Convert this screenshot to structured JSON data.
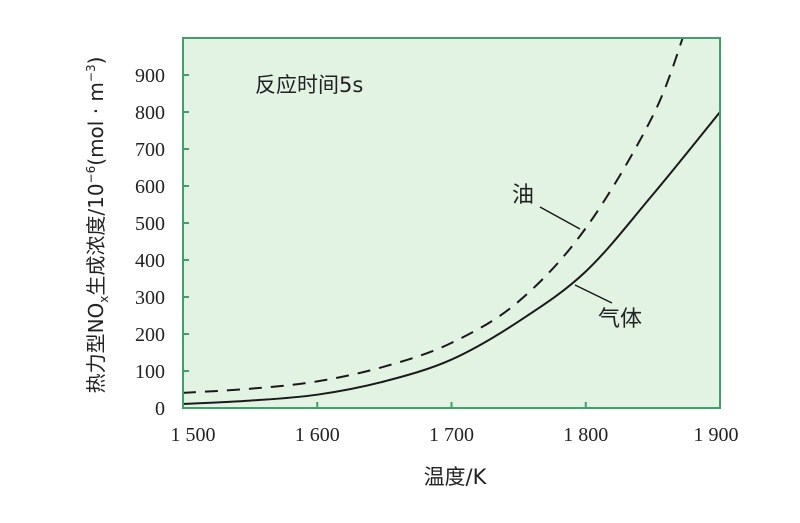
{
  "chart_data": {
    "type": "line",
    "title": "",
    "annotation": "反应时间5s",
    "xlabel": "温度/K",
    "ylabel": "热力型NOx生成浓度/10⁻⁶(mol · m⁻³)",
    "ylabel_parts": {
      "pre": "热力型NO",
      "sub": "x",
      "mid": "生成浓度/10",
      "sup1": "−6",
      "unit": "(mol · m",
      "sup2": "−3",
      "close": ")"
    },
    "xlim": [
      1500,
      1900
    ],
    "ylim": [
      0,
      1000
    ],
    "x_ticks": [
      1500,
      1600,
      1700,
      1800,
      1900
    ],
    "x_tick_labels": [
      "1 500",
      "1 600",
      "1 700",
      "1 800",
      "1 900"
    ],
    "y_ticks": [
      0,
      100,
      200,
      300,
      400,
      500,
      600,
      700,
      800,
      900
    ],
    "y_tick_labels": [
      "0",
      "100",
      "200",
      "300",
      "400",
      "500",
      "600",
      "700",
      "800",
      "900"
    ],
    "grid": false,
    "background_color": "#e3f3e3",
    "frame_color": "#3fa06a",
    "series": [
      {
        "name": "油",
        "style": "dashed",
        "color": "#1a1a1a",
        "x": [
          1500,
          1550,
          1600,
          1650,
          1700,
          1750,
          1800,
          1850,
          1875
        ],
        "y": [
          41,
          52,
          72,
          112,
          176,
          288,
          486,
          790,
          1030
        ]
      },
      {
        "name": "气体",
        "style": "solid",
        "color": "#1a1a1a",
        "x": [
          1500,
          1550,
          1600,
          1650,
          1700,
          1750,
          1800,
          1850,
          1900
        ],
        "y": [
          11,
          20,
          36,
          72,
          131,
          234,
          369,
          577,
          800
        ]
      }
    ]
  }
}
